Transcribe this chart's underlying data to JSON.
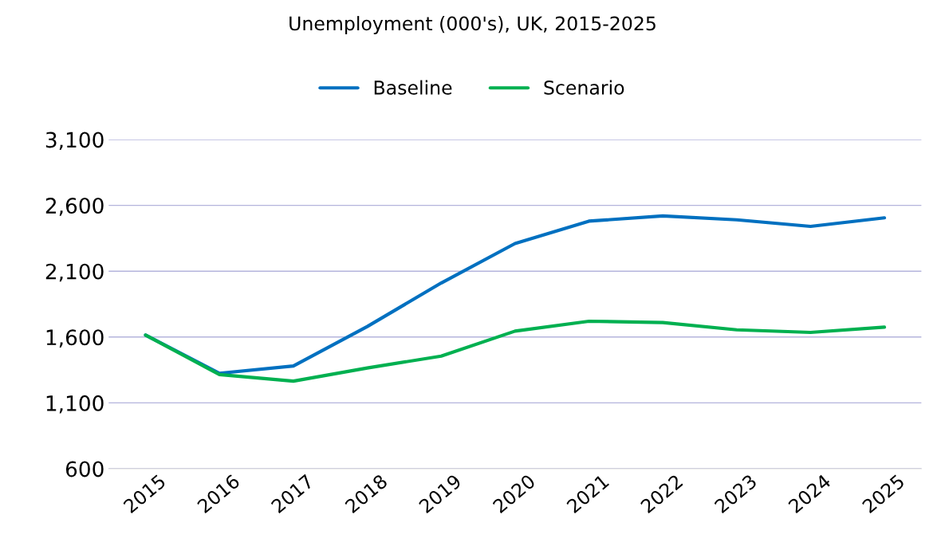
{
  "chart_data": {
    "type": "line",
    "title": "Unemployment (000's), UK, 2015-2025",
    "categories": [
      "2015",
      "2016",
      "2017",
      "2018",
      "2019",
      "2020",
      "2021",
      "2022",
      "2023",
      "2024",
      "2025"
    ],
    "series": [
      {
        "name": "Baseline",
        "color": "#0070c0",
        "values": [
          1615,
          1325,
          1380,
          1680,
          2010,
          2310,
          2480,
          2520,
          2490,
          2440,
          2505
        ]
      },
      {
        "name": "Scenario",
        "color": "#00b050",
        "values": [
          1615,
          1315,
          1265,
          1365,
          1455,
          1645,
          1720,
          1710,
          1655,
          1635,
          1675
        ]
      }
    ],
    "ylim": [
      600,
      3100
    ],
    "yticks": [
      {
        "value": 600,
        "label": "600"
      },
      {
        "value": 1100,
        "label": "1,100"
      },
      {
        "value": 1600,
        "label": "1,600"
      },
      {
        "value": 2100,
        "label": "2,100"
      },
      {
        "value": 2600,
        "label": "2,600"
      },
      {
        "value": 3100,
        "label": "3,100"
      }
    ],
    "grid": "y",
    "legend": "top",
    "marker": "none",
    "line_style": "solid"
  }
}
